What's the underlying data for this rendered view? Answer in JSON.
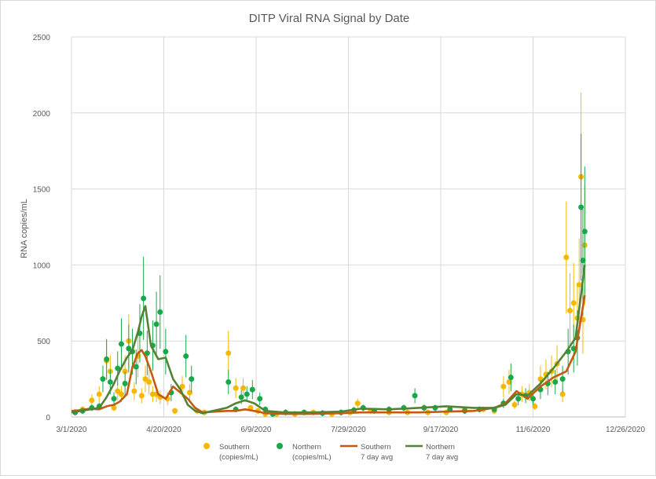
{
  "chart_data": {
    "type": "scatter",
    "title": "DITP Viral RNA Signal by Date",
    "ylabel": "RNA copies/mL",
    "xlabel": "",
    "ylim": [
      0,
      2500
    ],
    "yticks": [
      0,
      500,
      1000,
      1500,
      2000,
      2500
    ],
    "xlim": [
      "2020-03-01",
      "2020-12-26"
    ],
    "xticks": [
      "3/1/2020",
      "4/20/2020",
      "6/9/2020",
      "7/29/2020",
      "9/17/2020",
      "11/6/2020",
      "12/26/2020"
    ],
    "grid": true,
    "legend_position": "bottom",
    "colors": {
      "southern_points": "#f5b800",
      "northern_points": "#17a84a",
      "southern_avg": "#c55a11",
      "northern_avg": "#548235"
    },
    "series": [
      {
        "name": "Southern (copies/mL)",
        "kind": "points",
        "x": [
          "2020-03-03",
          "2020-03-07",
          "2020-03-12",
          "2020-03-16",
          "2020-03-20",
          "2020-03-22",
          "2020-03-24",
          "2020-03-26",
          "2020-03-28",
          "2020-03-30",
          "2020-04-01",
          "2020-04-04",
          "2020-04-06",
          "2020-04-08",
          "2020-04-10",
          "2020-04-12",
          "2020-04-14",
          "2020-04-16",
          "2020-04-18",
          "2020-04-22",
          "2020-04-26",
          "2020-04-30",
          "2020-05-04",
          "2020-05-08",
          "2020-05-12",
          "2020-05-25",
          "2020-05-29",
          "2020-06-02",
          "2020-06-06",
          "2020-06-10",
          "2020-06-14",
          "2020-06-20",
          "2020-06-30",
          "2020-07-10",
          "2020-07-20",
          "2020-07-30",
          "2020-08-03",
          "2020-08-10",
          "2020-08-20",
          "2020-08-30",
          "2020-09-10",
          "2020-09-20",
          "2020-09-30",
          "2020-10-10",
          "2020-10-16",
          "2020-10-21",
          "2020-10-24",
          "2020-10-27",
          "2020-10-31",
          "2020-11-04",
          "2020-11-07",
          "2020-11-10",
          "2020-11-13",
          "2020-11-16",
          "2020-11-19",
          "2020-11-22",
          "2020-11-24",
          "2020-11-26",
          "2020-11-28",
          "2020-11-30",
          "2020-12-01",
          "2020-12-02",
          "2020-12-03",
          "2020-12-04"
        ],
        "y": [
          30,
          50,
          110,
          150,
          370,
          300,
          60,
          170,
          150,
          300,
          500,
          170,
          400,
          140,
          250,
          230,
          150,
          150,
          130,
          120,
          40,
          200,
          160,
          40,
          30,
          420,
          190,
          190,
          60,
          40,
          20,
          20,
          20,
          30,
          20,
          30,
          90,
          40,
          30,
          30,
          30,
          30,
          50,
          50,
          40,
          200,
          230,
          80,
          150,
          160,
          70,
          250,
          280,
          300,
          350,
          150,
          1050,
          700,
          750,
          650,
          870,
          1580,
          640,
          1130
        ]
      },
      {
        "name": "Northern (copies/mL)",
        "kind": "points",
        "x": [
          "2020-03-03",
          "2020-03-07",
          "2020-03-12",
          "2020-03-16",
          "2020-03-18",
          "2020-03-20",
          "2020-03-22",
          "2020-03-24",
          "2020-03-26",
          "2020-03-28",
          "2020-03-30",
          "2020-04-01",
          "2020-04-03",
          "2020-04-05",
          "2020-04-07",
          "2020-04-09",
          "2020-04-11",
          "2020-04-14",
          "2020-04-16",
          "2020-04-18",
          "2020-04-21",
          "2020-04-24",
          "2020-05-02",
          "2020-05-05",
          "2020-05-25",
          "2020-05-29",
          "2020-06-01",
          "2020-06-04",
          "2020-06-07",
          "2020-06-11",
          "2020-06-14",
          "2020-06-18",
          "2020-06-25",
          "2020-07-05",
          "2020-07-15",
          "2020-07-25",
          "2020-08-01",
          "2020-08-06",
          "2020-08-12",
          "2020-08-20",
          "2020-08-28",
          "2020-09-03",
          "2020-09-08",
          "2020-09-14",
          "2020-09-22",
          "2020-09-30",
          "2020-10-08",
          "2020-10-16",
          "2020-10-21",
          "2020-10-25",
          "2020-10-29",
          "2020-11-02",
          "2020-11-06",
          "2020-11-10",
          "2020-11-14",
          "2020-11-18",
          "2020-11-22",
          "2020-11-25",
          "2020-11-28",
          "2020-11-30",
          "2020-12-02",
          "2020-12-03",
          "2020-12-04"
        ],
        "y": [
          30,
          40,
          60,
          70,
          250,
          380,
          230,
          120,
          320,
          480,
          220,
          450,
          430,
          330,
          550,
          780,
          420,
          470,
          610,
          690,
          430,
          160,
          400,
          250,
          230,
          50,
          130,
          150,
          180,
          120,
          50,
          20,
          30,
          30,
          25,
          30,
          45,
          60,
          40,
          50,
          60,
          140,
          60,
          60,
          50,
          40,
          50,
          50,
          90,
          260,
          120,
          140,
          120,
          180,
          220,
          230,
          250,
          430,
          450,
          520,
          1380,
          1030,
          1220
        ]
      },
      {
        "name": "Southern 7 day avg",
        "kind": "line",
        "x": [
          "2020-03-01",
          "2020-03-06",
          "2020-03-11",
          "2020-03-16",
          "2020-03-20",
          "2020-03-24",
          "2020-03-27",
          "2020-03-31",
          "2020-04-03",
          "2020-04-06",
          "2020-04-08",
          "2020-04-10",
          "2020-04-13",
          "2020-04-17",
          "2020-04-21",
          "2020-04-25",
          "2020-04-29",
          "2020-05-03",
          "2020-05-07",
          "2020-05-11",
          "2020-05-24",
          "2020-05-29",
          "2020-06-03",
          "2020-06-08",
          "2020-06-14",
          "2020-06-24",
          "2020-07-10",
          "2020-07-25",
          "2020-08-05",
          "2020-08-20",
          "2020-09-05",
          "2020-09-20",
          "2020-10-05",
          "2020-10-16",
          "2020-10-22",
          "2020-10-28",
          "2020-11-03",
          "2020-11-10",
          "2020-11-17",
          "2020-11-24",
          "2020-11-29",
          "2020-12-04"
        ],
        "y": [
          40,
          45,
          55,
          50,
          70,
          80,
          100,
          150,
          330,
          420,
          440,
          400,
          300,
          150,
          120,
          200,
          160,
          120,
          60,
          30,
          40,
          40,
          50,
          40,
          25,
          20,
          20,
          25,
          30,
          30,
          30,
          35,
          40,
          60,
          90,
          170,
          120,
          200,
          260,
          300,
          430,
          800
        ]
      },
      {
        "name": "Northern 7 day avg",
        "kind": "line",
        "x": [
          "2020-03-01",
          "2020-03-06",
          "2020-03-11",
          "2020-03-16",
          "2020-03-20",
          "2020-03-24",
          "2020-03-27",
          "2020-03-31",
          "2020-04-03",
          "2020-04-06",
          "2020-04-08",
          "2020-04-10",
          "2020-04-13",
          "2020-04-17",
          "2020-04-21",
          "2020-04-25",
          "2020-04-29",
          "2020-05-03",
          "2020-05-07",
          "2020-05-11",
          "2020-05-24",
          "2020-05-29",
          "2020-06-03",
          "2020-06-08",
          "2020-06-14",
          "2020-06-24",
          "2020-07-10",
          "2020-07-25",
          "2020-08-05",
          "2020-08-20",
          "2020-09-05",
          "2020-09-20",
          "2020-10-05",
          "2020-10-16",
          "2020-10-22",
          "2020-10-28",
          "2020-11-03",
          "2020-11-10",
          "2020-11-17",
          "2020-11-24",
          "2020-11-29",
          "2020-12-04"
        ],
        "y": [
          30,
          40,
          50,
          60,
          130,
          220,
          300,
          390,
          440,
          560,
          660,
          730,
          470,
          380,
          390,
          250,
          180,
          80,
          40,
          25,
          60,
          90,
          110,
          90,
          40,
          30,
          30,
          35,
          55,
          50,
          60,
          70,
          60,
          60,
          80,
          150,
          140,
          220,
          320,
          430,
          520,
          1000
        ]
      }
    ]
  },
  "legend": [
    {
      "line1": "Southern",
      "line2": "(copies/mL)"
    },
    {
      "line1": "Northern",
      "line2": "(copies/mL)"
    },
    {
      "line1": "Southern",
      "line2": "7 day avg"
    },
    {
      "line1": "Northern",
      "line2": "7 day avg"
    }
  ]
}
